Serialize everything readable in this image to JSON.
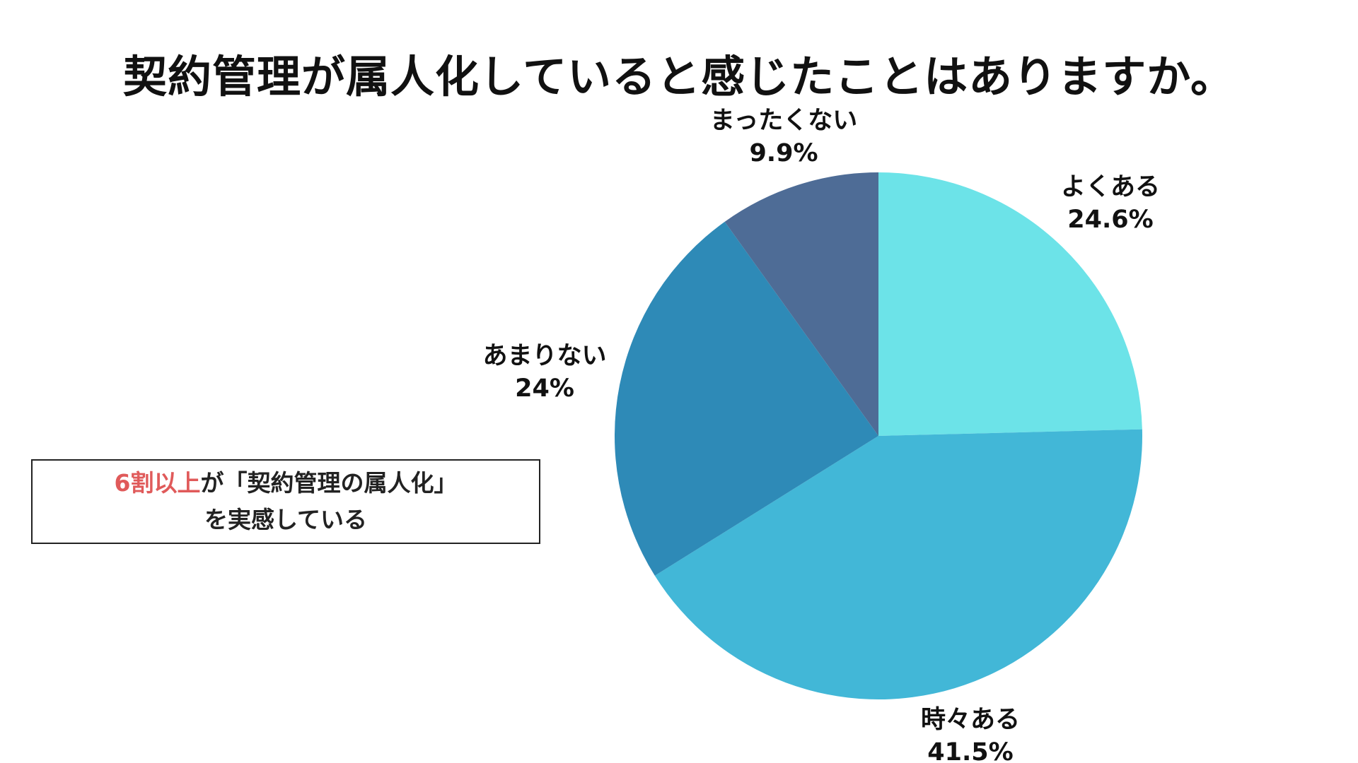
{
  "title": "契約管理が属人化していると感じたことはありますか。",
  "callout": {
    "highlight": "6割以上",
    "line1_rest": "が「契約管理の属人化」",
    "line2": "を実感している",
    "highlight_color": "#e05a5a"
  },
  "chart_data": {
    "type": "pie",
    "start": "12 o'clock, clockwise",
    "slices": [
      {
        "label": "よくある",
        "value": 24.6,
        "value_label": "24.6%",
        "color": "#6ce3e8"
      },
      {
        "label": "時々ある",
        "value": 41.5,
        "value_label": "41.5%",
        "color": "#42b7d7"
      },
      {
        "label": "あまりない",
        "value": 24,
        "value_label": "24%",
        "color": "#2e8ab7"
      },
      {
        "label": "まったくない",
        "value": 9.9,
        "value_label": "9.9%",
        "color": "#4e6c96"
      }
    ]
  }
}
